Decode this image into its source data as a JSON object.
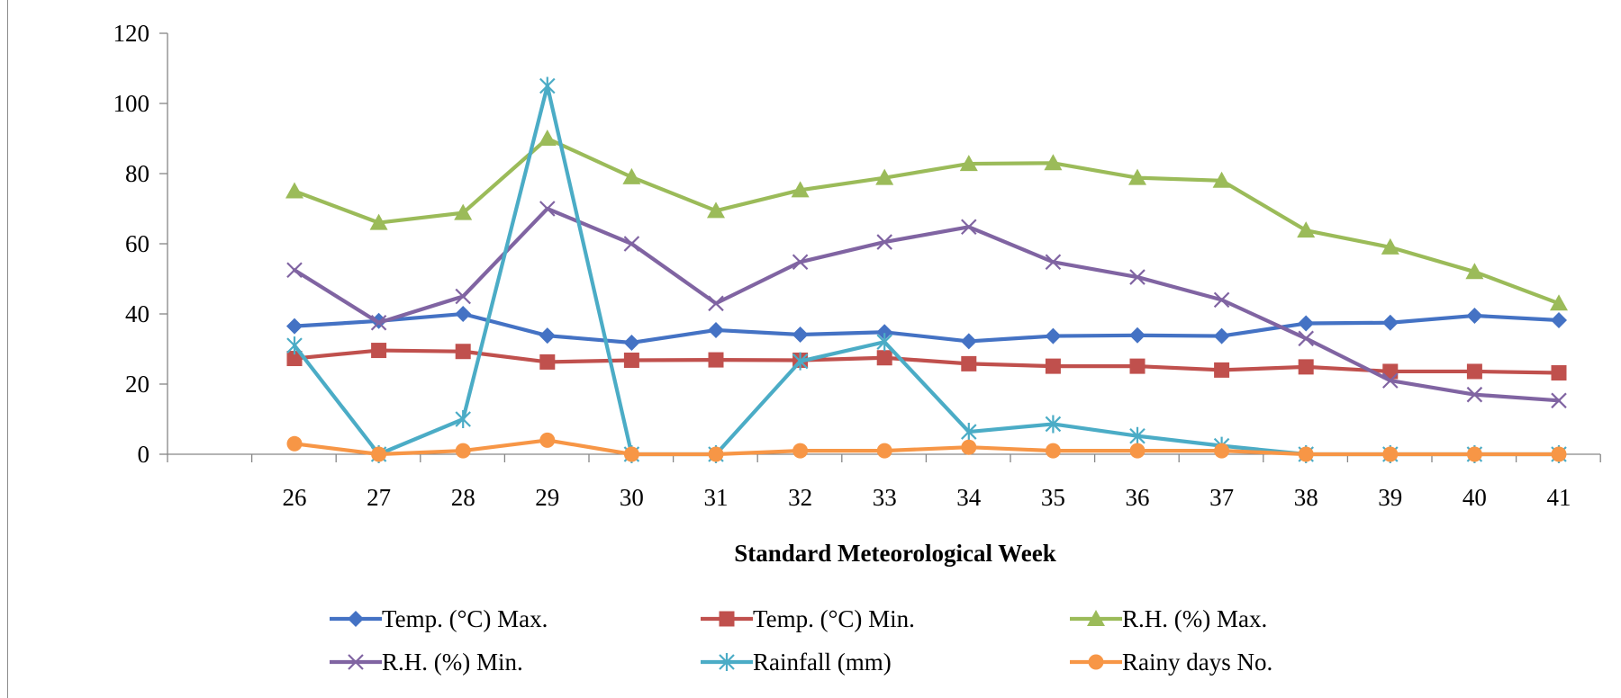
{
  "chart_data": {
    "type": "line",
    "title": "",
    "xlabel": "Standard  Meteorological Week",
    "ylabel": "",
    "ylim": [
      0,
      120
    ],
    "yticks": [
      0,
      20,
      40,
      60,
      80,
      100,
      120
    ],
    "categories": [
      "26",
      "27",
      "28",
      "29",
      "30",
      "31",
      "32",
      "33",
      "34",
      "35",
      "36",
      "37",
      "38",
      "39",
      "40",
      "41"
    ],
    "grid": false,
    "legend_position": "bottom",
    "series": [
      {
        "name": "Temp. (°C) Max.",
        "color": "#4472c4",
        "marker": "diamond",
        "values": [
          36.5,
          38,
          40,
          33.8,
          31.8,
          35.4,
          34.1,
          34.8,
          32.2,
          33.7,
          33.9,
          33.7,
          37.3,
          37.5,
          39.5,
          38.2
        ]
      },
      {
        "name": "Temp. (°C) Min.",
        "color": "#c0504d",
        "marker": "square",
        "values": [
          27.3,
          29.6,
          29.3,
          26.3,
          26.8,
          26.9,
          26.8,
          27.5,
          25.8,
          25.1,
          25.1,
          24,
          24.9,
          23.6,
          23.6,
          23.2
        ]
      },
      {
        "name": "R.H. (%) Max.",
        "color": "#9bbb59",
        "marker": "triangle",
        "values": [
          75,
          66,
          68.8,
          90,
          79,
          69.4,
          75.3,
          78.8,
          82.8,
          83,
          78.8,
          78,
          63.8,
          59,
          52,
          43
        ]
      },
      {
        "name": "R.H. (%) Min.",
        "color": "#8064a2",
        "marker": "x",
        "values": [
          52.5,
          37.5,
          45,
          70,
          60,
          43,
          54.8,
          60.5,
          64.8,
          54.8,
          50.5,
          44,
          33,
          21,
          17,
          15.3
        ]
      },
      {
        "name": "Rainfall (mm)",
        "color": "#4bacc6",
        "marker": "star",
        "values": [
          31,
          0,
          10,
          105,
          0,
          0,
          26.5,
          32,
          6.4,
          8.6,
          5.2,
          2.4,
          0,
          0,
          0,
          0
        ]
      },
      {
        "name": "Rainy days No.",
        "color": "#f79646",
        "marker": "circle",
        "values": [
          3,
          0,
          1,
          4,
          0,
          0,
          1,
          1,
          2,
          1,
          1,
          1,
          0,
          0,
          0,
          0
        ]
      }
    ]
  }
}
